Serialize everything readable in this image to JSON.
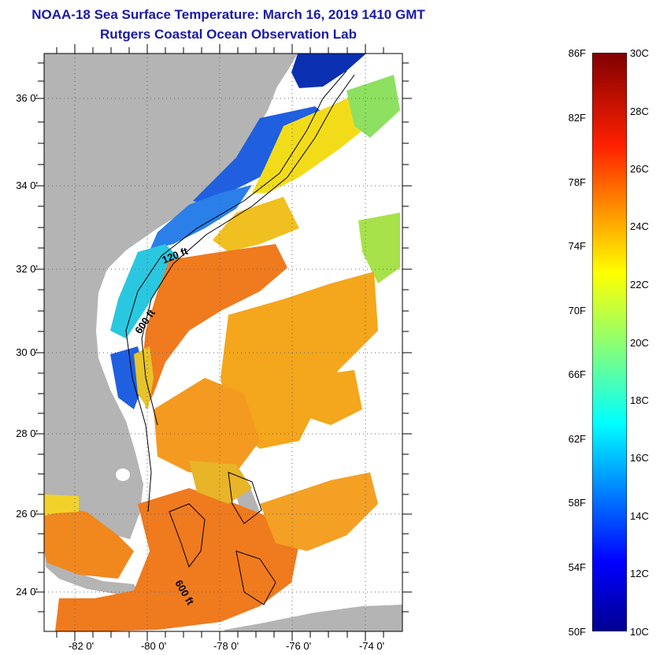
{
  "title": {
    "line1": "NOAA-18 Sea Surface Temperature:  March 16, 2019 1410 GMT",
    "line2": "Rutgers Coastal Ocean Observation Lab"
  },
  "axes": {
    "lat_labels": [
      "36 0'",
      "34 0'",
      "32 0'",
      "30 0'",
      "28 0'",
      "26 0'",
      "24 0'"
    ],
    "lon_labels": [
      "-82 0'",
      "-80 0'",
      "-78 0'",
      "-76 0'",
      "-74 0'"
    ]
  },
  "isobaths": {
    "label_120": "120 ft",
    "label_600a": "600 ft",
    "label_600b": "600 ft"
  },
  "colorbar": {
    "fahrenheit": [
      "86F",
      "82F",
      "78F",
      "74F",
      "70F",
      "66F",
      "62F",
      "58F",
      "54F",
      "50F"
    ],
    "celsius": [
      "30C",
      "28C",
      "26C",
      "24C",
      "22C",
      "20C",
      "18C",
      "16C",
      "14C",
      "12C",
      "10C"
    ]
  },
  "colors": {
    "land": "#b4b4b4",
    "title": "#1a1aa8",
    "warm": "#f07a1e",
    "cold": "#0a2fb0"
  }
}
